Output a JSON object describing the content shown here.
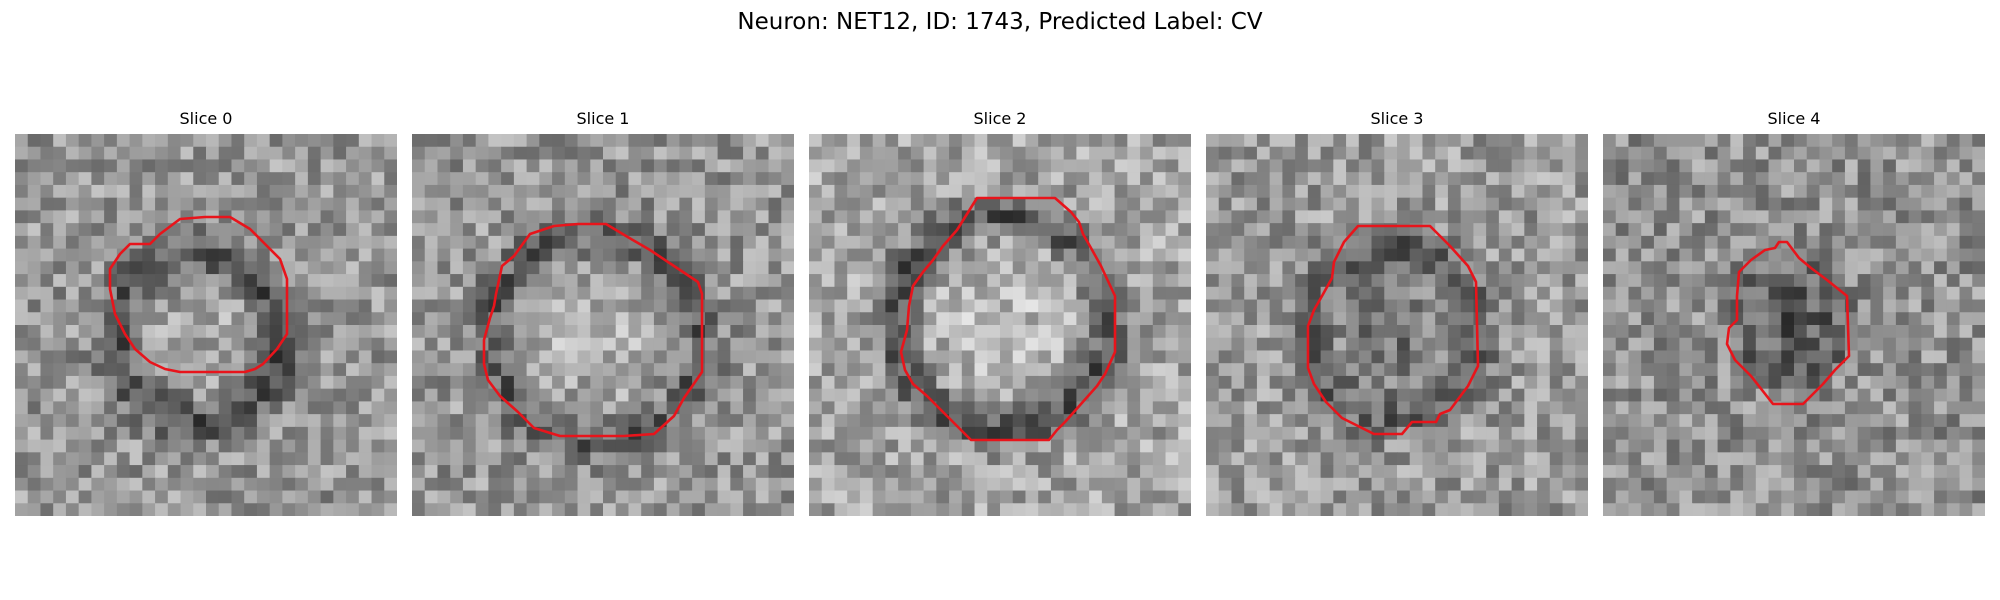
{
  "title": "Neuron: NET12, ID: 1743, Predicted Label: CV",
  "contour_color": "#e8141b",
  "panels": [
    {
      "label": "Slice 0"
    },
    {
      "label": "Slice 1"
    },
    {
      "label": "Slice 2"
    },
    {
      "label": "Slice 3"
    },
    {
      "label": "Slice 4"
    }
  ]
}
